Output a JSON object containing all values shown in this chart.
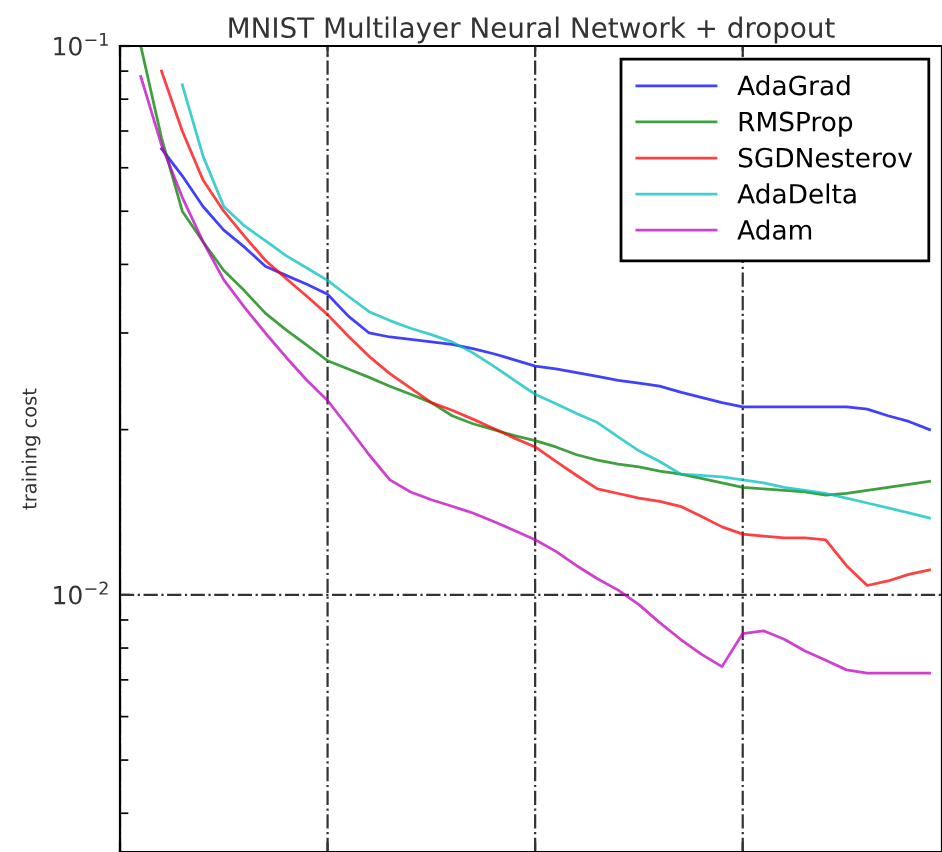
{
  "chart_data": {
    "type": "line",
    "title": "MNIST Multilayer Neural Network + dropout",
    "ylabel": "training cost",
    "log": "y",
    "ylim": [
      0.0034,
      0.1
    ],
    "yticks": [
      {
        "value": 0.01,
        "label": "10$^{−2}$"
      },
      {
        "value": 0.1,
        "label": "10$^{−1}$"
      }
    ],
    "grid": true,
    "legend": "top right",
    "line_style": "solid",
    "marker": "none",
    "categories": [
      null,
      null,
      null,
      null,
      null,
      null,
      null,
      null,
      null,
      null,
      null,
      null,
      null,
      null,
      null,
      null,
      null,
      null,
      null,
      null,
      null,
      null,
      null,
      null,
      null,
      null,
      null,
      null,
      null,
      null,
      null,
      null,
      null,
      null,
      null,
      null,
      null,
      null,
      null,
      null
    ],
    "series": [
      {
        "name": "AdaGrad",
        "color": "#0000ff",
        "values": [
          null,
          null,
          0.065,
          0.058,
          0.051,
          0.0462,
          0.043,
          0.0397,
          0.0382,
          0.0368,
          0.0353,
          0.0322,
          0.03,
          0.0295,
          0.0292,
          0.0289,
          0.0286,
          0.0281,
          0.0275,
          0.0268,
          0.0261,
          0.0258,
          0.0254,
          0.025,
          0.0246,
          0.0243,
          0.024,
          0.0234,
          0.0229,
          0.0224,
          0.022,
          0.022,
          0.022,
          0.022,
          0.022,
          0.022,
          0.0218,
          0.0212,
          0.0207,
          0.02
        ]
      },
      {
        "name": "RMSProp",
        "color": "#008000",
        "values": [
          null,
          0.1,
          0.068,
          0.05,
          0.044,
          0.039,
          0.0358,
          0.0326,
          0.0304,
          0.0285,
          0.0267,
          0.0258,
          0.0249,
          0.024,
          0.0232,
          0.0224,
          0.0212,
          0.0205,
          0.02,
          0.0195,
          0.0191,
          0.0186,
          0.018,
          0.0176,
          0.0173,
          0.0171,
          0.0168,
          0.0166,
          0.0163,
          0.016,
          0.0157,
          0.0156,
          0.0155,
          0.0154,
          0.0152,
          0.0153,
          0.0155,
          0.0157,
          0.0159,
          0.0161
        ]
      },
      {
        "name": "SGDNesterov",
        "color": "#ff0000",
        "values": [
          null,
          null,
          0.09,
          0.07,
          0.057,
          0.05,
          0.045,
          0.0407,
          0.0377,
          0.035,
          0.0324,
          0.0296,
          0.0272,
          0.0253,
          0.0238,
          0.0224,
          0.0217,
          0.0209,
          0.0201,
          0.0193,
          0.0186,
          0.0175,
          0.0165,
          0.0156,
          0.0153,
          0.015,
          0.0148,
          0.0145,
          0.0139,
          0.0133,
          0.0129,
          0.0128,
          0.0127,
          0.0127,
          0.0126,
          0.0113,
          0.0104,
          0.0106,
          0.0109,
          0.0111
        ]
      },
      {
        "name": "AdaDelta",
        "color": "#00bfbf",
        "values": [
          null,
          null,
          null,
          0.085,
          0.063,
          0.051,
          0.047,
          0.0442,
          0.0415,
          0.0394,
          0.0374,
          0.035,
          0.0328,
          0.0316,
          0.0306,
          0.0298,
          0.0289,
          0.0276,
          0.0261,
          0.0246,
          0.0232,
          0.0223,
          0.0214,
          0.0206,
          0.0194,
          0.0183,
          0.0175,
          0.0166,
          0.0165,
          0.0164,
          0.0162,
          0.016,
          0.0157,
          0.0155,
          0.0153,
          0.015,
          0.0147,
          0.0144,
          0.0141,
          0.0138
        ]
      },
      {
        "name": "Adam",
        "color": "#bf00bf",
        "values": [
          null,
          0.088,
          0.066,
          0.053,
          0.044,
          0.0375,
          0.0334,
          0.03,
          0.0271,
          0.0246,
          0.0226,
          0.0202,
          0.018,
          0.0162,
          0.0154,
          0.0149,
          0.0145,
          0.0141,
          0.0136,
          0.0131,
          0.0126,
          0.012,
          0.0113,
          0.0107,
          0.0102,
          0.0096,
          0.0089,
          0.0083,
          0.0078,
          0.0074,
          0.0085,
          0.0086,
          0.0083,
          0.0079,
          0.0076,
          0.0073,
          0.0072,
          0.0072,
          0.0072,
          0.0072
        ]
      }
    ]
  }
}
